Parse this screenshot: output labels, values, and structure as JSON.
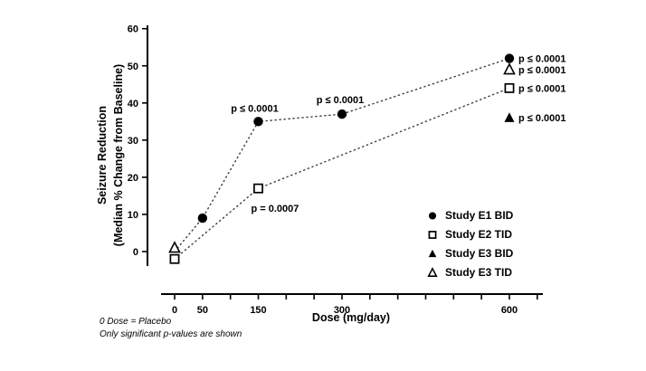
{
  "figure": {
    "y_axis_label_line1": "Seizure Reduction",
    "y_axis_label_line2": "(Median % Change from Baseline)",
    "x_axis_title": "Dose (mg/day)",
    "footnote_line1": "0 Dose = Placebo",
    "footnote_line2": "Only significant p-values are shown"
  },
  "chart_data": {
    "type": "line",
    "title": "",
    "xlabel": "Dose (mg/day)",
    "ylabel": "Seizure Reduction (Median % Change from Baseline)",
    "xlim": [
      -40,
      660
    ],
    "ylim": [
      -5,
      60
    ],
    "yticks": [
      0,
      10,
      20,
      30,
      40,
      50,
      60
    ],
    "xticks_labeled": [
      0,
      50,
      150,
      300,
      600
    ],
    "xtick_minor_step": 50,
    "xtick_minor_max": 650,
    "grid": false,
    "legend_position": "lower-right",
    "marker_color": "#000000",
    "background_color": "#ffffff",
    "series": [
      {
        "name": "Study E1 BID",
        "marker": "filled-circle",
        "line": "dotted",
        "points": [
          {
            "x": 0,
            "y": 0,
            "marker_visible": false
          },
          {
            "x": 50,
            "y": 9
          },
          {
            "x": 150,
            "y": 35,
            "annotation": "p ≤ 0.0001",
            "annotation_pos": "above-left"
          },
          {
            "x": 300,
            "y": 37,
            "annotation": "p ≤ 0.0001",
            "annotation_pos": "above"
          },
          {
            "x": 600,
            "y": 52,
            "annotation": "p ≤ 0.0001",
            "annotation_pos": "right"
          }
        ]
      },
      {
        "name": "Study E2 TID",
        "marker": "open-square",
        "line": "dotted",
        "points": [
          {
            "x": 0,
            "y": -2
          },
          {
            "x": 150,
            "y": 17,
            "annotation": "p = 0.0007",
            "annotation_pos": "below"
          },
          {
            "x": 600,
            "y": 44,
            "annotation": "p ≤ 0.0001",
            "annotation_pos": "right"
          }
        ]
      },
      {
        "name": "Study E3 BID",
        "marker": "filled-triangle",
        "line": "none",
        "points": [
          {
            "x": 600,
            "y": 36,
            "annotation": "p ≤ 0.0001",
            "annotation_pos": "right"
          }
        ]
      },
      {
        "name": "Study E3 TID",
        "marker": "open-triangle",
        "line": "none",
        "points": [
          {
            "x": 0,
            "y": 1
          },
          {
            "x": 600,
            "y": 49,
            "annotation": "p ≤ 0.0001",
            "annotation_pos": "right"
          }
        ]
      }
    ]
  }
}
